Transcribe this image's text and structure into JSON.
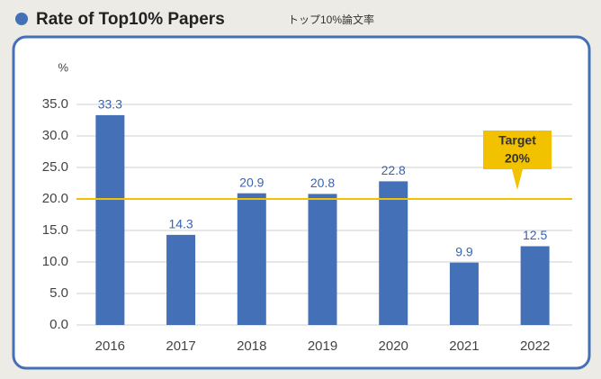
{
  "chart_data": {
    "type": "bar",
    "title": "Rate of Top10% Papers",
    "subtitle": "トップ10%論文率",
    "y_unit": "%",
    "categories": [
      "2016",
      "2017",
      "2018",
      "2019",
      "2020",
      "2021",
      "2022"
    ],
    "values": [
      33.3,
      14.3,
      20.9,
      20.8,
      22.8,
      9.9,
      12.5
    ],
    "color": "#4470b8",
    "ylim": [
      0,
      35
    ],
    "yticks": [
      {
        "value": 0,
        "label": "0.0"
      },
      {
        "value": 5,
        "label": "5.0"
      },
      {
        "value": 10,
        "label": "10.0"
      },
      {
        "value": 15,
        "label": "15.0"
      },
      {
        "value": 20,
        "label": "20.0"
      },
      {
        "value": 25,
        "label": "25.0"
      },
      {
        "value": 30,
        "label": "30.0"
      },
      {
        "value": 35,
        "label": "35.0"
      }
    ],
    "grid": true,
    "target": {
      "label": "Target",
      "value": 20,
      "value_label": "20%",
      "color": "#f2c200"
    }
  }
}
